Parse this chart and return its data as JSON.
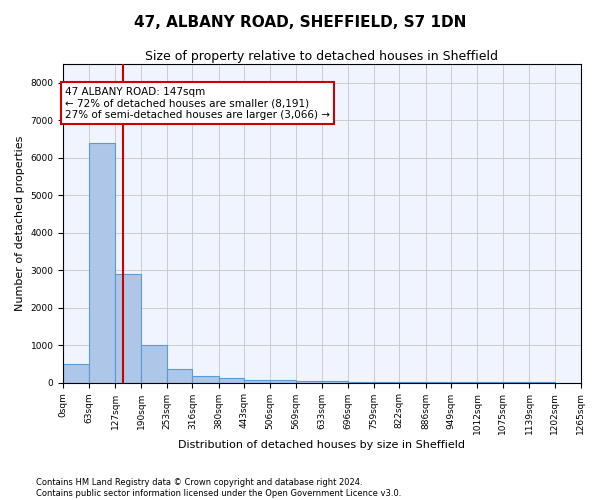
{
  "title": "47, ALBANY ROAD, SHEFFIELD, S7 1DN",
  "subtitle": "Size of property relative to detached houses in Sheffield",
  "xlabel": "Distribution of detached houses by size in Sheffield",
  "ylabel": "Number of detached properties",
  "bin_edges": [
    0,
    63,
    127,
    190,
    253,
    316,
    380,
    443,
    506,
    569,
    633,
    696,
    759,
    822,
    886,
    949,
    1012,
    1075,
    1139,
    1202,
    1265
  ],
  "bar_heights": [
    500,
    6400,
    2900,
    1000,
    350,
    175,
    110,
    75,
    60,
    40,
    30,
    20,
    15,
    10,
    8,
    6,
    5,
    4,
    3,
    2
  ],
  "bar_color": "#aec6e8",
  "bar_edge_color": "#5b9bd5",
  "vline_x": 147,
  "vline_color": "#cc0000",
  "annotation_line1": "47 ALBANY ROAD: 147sqm",
  "annotation_line2": "← 72% of detached houses are smaller (8,191)",
  "annotation_line3": "27% of semi-detached houses are larger (3,066) →",
  "annotation_box_color": "#cc0000",
  "ylim": [
    0,
    8500
  ],
  "yticks": [
    0,
    1000,
    2000,
    3000,
    4000,
    5000,
    6000,
    7000,
    8000
  ],
  "grid_color": "#cccccc",
  "bg_color": "#f0f4ff",
  "footer_line1": "Contains HM Land Registry data © Crown copyright and database right 2024.",
  "footer_line2": "Contains public sector information licensed under the Open Government Licence v3.0.",
  "title_fontsize": 11,
  "subtitle_fontsize": 9,
  "tick_fontsize": 6.5,
  "label_fontsize": 8,
  "annotation_fontsize": 7.5
}
